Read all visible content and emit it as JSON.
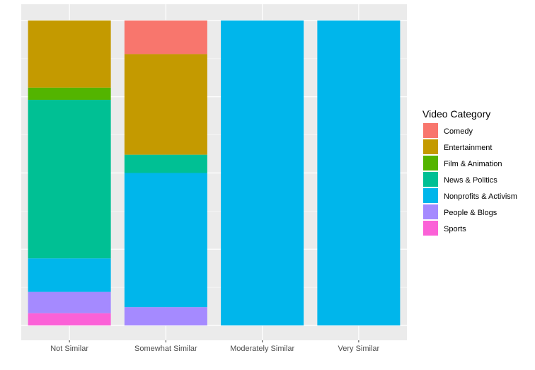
{
  "chart_data": {
    "type": "bar",
    "stacked": true,
    "categories": [
      "Not Similar",
      "Somewhat Similar",
      "Moderately Similar",
      "Very Similar"
    ],
    "series": [
      {
        "name": "Comedy",
        "color": "#F8766D",
        "values": [
          0.0,
          0.11,
          0,
          0
        ]
      },
      {
        "name": "Entertainment",
        "color": "#C49A00",
        "values": [
          0.22,
          0.33,
          0,
          0
        ]
      },
      {
        "name": "Film & Animation",
        "color": "#53B400",
        "values": [
          0.04,
          0.0,
          0,
          0
        ]
      },
      {
        "name": "News & Politics",
        "color": "#00C094",
        "values": [
          0.52,
          0.06,
          0,
          0
        ]
      },
      {
        "name": "Nonprofits & Activism",
        "color": "#00B6EB",
        "values": [
          0.11,
          0.44,
          1,
          1
        ]
      },
      {
        "name": "People & Blogs",
        "color": "#A58AFF",
        "values": [
          0.07,
          0.06,
          0,
          0
        ]
      },
      {
        "name": "Sports",
        "color": "#FB61D7",
        "values": [
          0.04,
          0.0,
          0,
          0
        ]
      }
    ],
    "ylim": [
      -0.05,
      1.05
    ],
    "legend": {
      "title": "Video Category",
      "placement": "right"
    },
    "grid": true,
    "panel_background": "#EBEBEB"
  }
}
